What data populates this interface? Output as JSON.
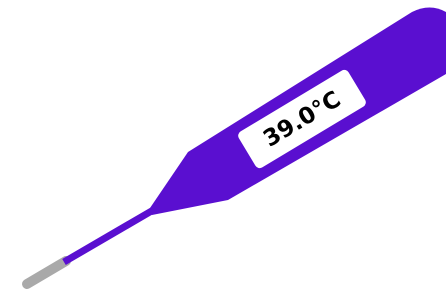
{
  "display": {
    "reading": "39.0°C"
  }
}
